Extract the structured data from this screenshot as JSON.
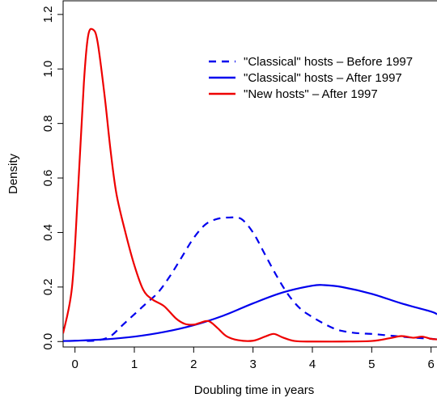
{
  "chart_data": {
    "type": "line",
    "title": "",
    "xlabel": "Doubling time in years",
    "ylabel": "Density",
    "xlim": [
      -0.2,
      6.1
    ],
    "ylim": [
      -0.02,
      1.25
    ],
    "x_ticks": [
      0,
      1,
      2,
      3,
      4,
      5,
      6
    ],
    "y_ticks": [
      0.0,
      0.2,
      0.4,
      0.6,
      0.8,
      1.0,
      1.2
    ],
    "x_tick_labels": [
      "0",
      "1",
      "2",
      "3",
      "4",
      "5",
      "6"
    ],
    "y_tick_labels": [
      "0.0",
      "0.2",
      "0.4",
      "0.6",
      "0.8",
      "1.0",
      "1.2"
    ],
    "grid": false,
    "legend_position": "top-right",
    "series": [
      {
        "name": "\"Classical\" hosts – Before 1997",
        "color": "#0000ee",
        "dash": "dashed",
        "x": [
          0.2,
          0.4,
          0.6,
          0.8,
          1.0,
          1.2,
          1.4,
          1.6,
          1.8,
          2.0,
          2.2,
          2.4,
          2.6,
          2.8,
          3.0,
          3.2,
          3.4,
          3.6,
          3.8,
          4.0,
          4.2,
          4.4,
          4.6,
          4.8,
          5.0,
          5.2,
          5.4,
          5.6,
          5.8,
          6.0,
          6.1
        ],
        "y": [
          0.002,
          0.005,
          0.02,
          0.06,
          0.1,
          0.14,
          0.18,
          0.24,
          0.31,
          0.38,
          0.43,
          0.45,
          0.455,
          0.45,
          0.4,
          0.32,
          0.24,
          0.17,
          0.12,
          0.09,
          0.065,
          0.045,
          0.035,
          0.03,
          0.028,
          0.024,
          0.02,
          0.016,
          0.013,
          0.01,
          0.008
        ]
      },
      {
        "name": "\"Classical\" hosts – After 1997",
        "color": "#0000ee",
        "dash": "solid",
        "x": [
          -0.2,
          0.0,
          0.5,
          1.0,
          1.5,
          2.0,
          2.5,
          3.0,
          3.5,
          4.0,
          4.2,
          4.5,
          5.0,
          5.5,
          6.0,
          6.1
        ],
        "y": [
          0.002,
          0.003,
          0.008,
          0.018,
          0.035,
          0.06,
          0.095,
          0.14,
          0.18,
          0.205,
          0.207,
          0.2,
          0.175,
          0.14,
          0.11,
          0.1
        ]
      },
      {
        "name": "\"New hosts\" – After 1997",
        "color": "#ee0000",
        "dash": "solid",
        "x": [
          -0.2,
          -0.05,
          0.05,
          0.15,
          0.22,
          0.3,
          0.38,
          0.5,
          0.6,
          0.7,
          0.85,
          1.0,
          1.15,
          1.3,
          1.5,
          1.7,
          1.85,
          2.0,
          2.1,
          2.25,
          2.4,
          2.55,
          2.75,
          3.0,
          3.2,
          3.35,
          3.5,
          3.7,
          4.0,
          4.5,
          5.0,
          5.3,
          5.5,
          5.7,
          5.85,
          6.0,
          6.1
        ],
        "y": [
          0.03,
          0.2,
          0.55,
          0.95,
          1.12,
          1.145,
          1.1,
          0.9,
          0.7,
          0.54,
          0.4,
          0.28,
          0.19,
          0.155,
          0.13,
          0.085,
          0.065,
          0.062,
          0.068,
          0.075,
          0.05,
          0.02,
          0.005,
          0.003,
          0.018,
          0.028,
          0.015,
          0.002,
          0.0,
          0.0,
          0.002,
          0.012,
          0.02,
          0.014,
          0.018,
          0.01,
          0.008
        ]
      }
    ]
  }
}
